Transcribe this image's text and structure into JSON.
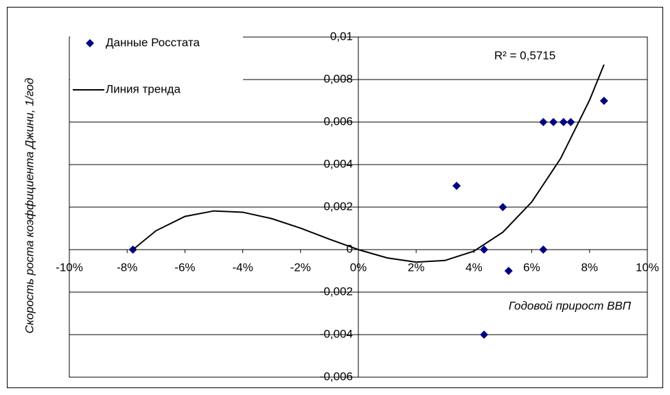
{
  "chart_data": {
    "type": "scatter",
    "x_label": "Годовой прирост ВВП",
    "y_label": "Скорость роста коэффициента Джини, 1/год",
    "annotation": "R² = 0,5715",
    "series": [
      {
        "name": "Данные Росстата",
        "type": "scatter",
        "color": "#000080",
        "x": [
          -7.8,
          3.4,
          4.35,
          5.0,
          5.2,
          4.35,
          6.4,
          6.75,
          7.1,
          7.35,
          8.5,
          6.4
        ],
        "values": [
          0,
          0.003,
          0,
          0.002,
          -0.001,
          -0.004,
          0.006,
          0.006,
          0.006,
          0.006,
          0.007,
          0
        ]
      },
      {
        "name": "Линия тренда",
        "type": "line",
        "color": "#000000",
        "x": [
          -7.8,
          -7,
          -6,
          -5,
          -4,
          -3,
          -2,
          -1,
          0,
          1,
          2,
          3,
          4,
          5,
          6,
          7,
          8,
          8.5
        ],
        "values": [
          0,
          0.00089,
          0.00156,
          0.00182,
          0.00176,
          0.00146,
          0.00101,
          0.00049,
          0,
          -0.00039,
          -0.00059,
          -0.00051,
          -7e-05,
          0.00082,
          0.00224,
          0.00429,
          0.00703,
          0.0087
        ]
      }
    ],
    "xlim": [
      -10,
      10
    ],
    "xticks": [
      {
        "value": -10,
        "label": "-10%"
      },
      {
        "value": -8,
        "label": "-8%"
      },
      {
        "value": -6,
        "label": "-6%"
      },
      {
        "value": -4,
        "label": "-4%"
      },
      {
        "value": -2,
        "label": "-2%"
      },
      {
        "value": 0,
        "label": "0%"
      },
      {
        "value": 2,
        "label": "2%"
      },
      {
        "value": 4,
        "label": "4%"
      },
      {
        "value": 6,
        "label": "6%"
      },
      {
        "value": 8,
        "label": "8%"
      },
      {
        "value": 10,
        "label": "10%"
      }
    ],
    "ylim": [
      -0.006,
      0.01
    ],
    "yticks": [
      {
        "value": -0.006,
        "label": "-0,006"
      },
      {
        "value": -0.004,
        "label": "-0,004"
      },
      {
        "value": -0.002,
        "label": "-0,002"
      },
      0,
      {
        "value": 0.002,
        "label": "0,002"
      },
      {
        "value": 0.004,
        "label": "0,004"
      },
      {
        "value": 0.006,
        "label": "0,006"
      },
      {
        "value": 0.008,
        "label": "0,008"
      },
      {
        "value": 0.01,
        "label": "0,01"
      }
    ],
    "grid": true
  }
}
